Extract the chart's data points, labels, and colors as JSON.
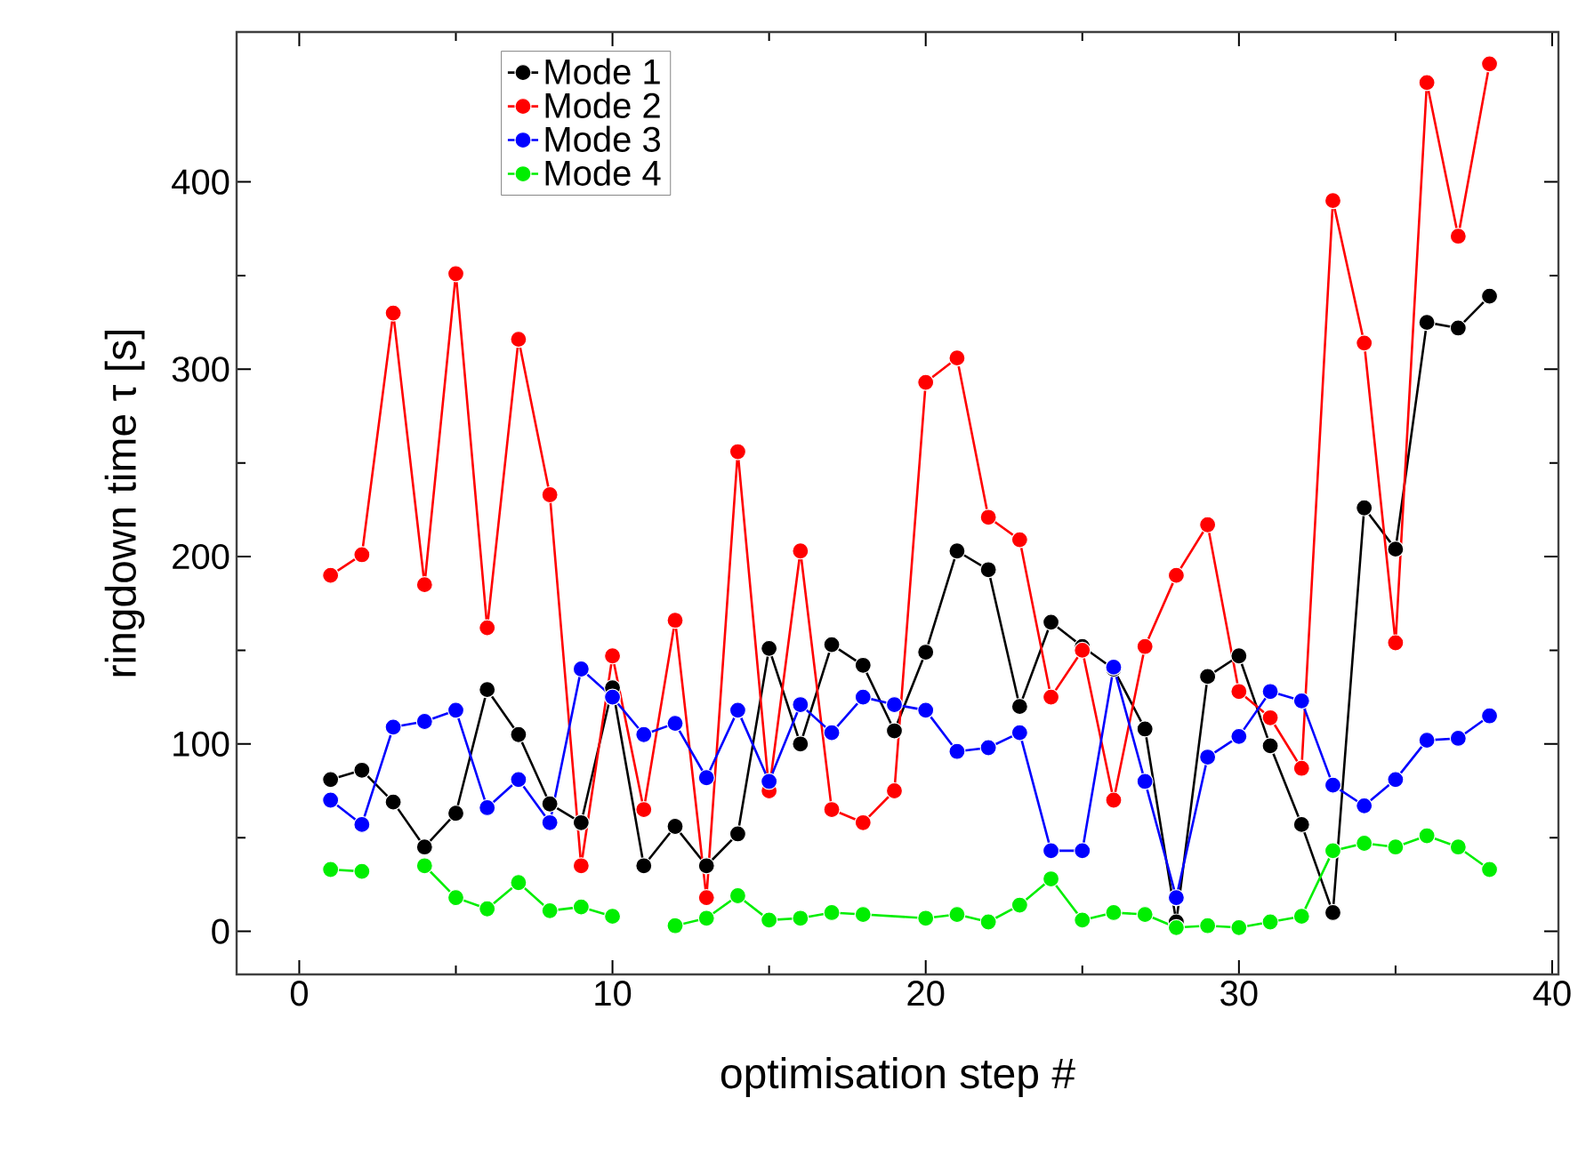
{
  "chart_data": {
    "type": "line",
    "xlabel": "optimisation step #",
    "ylabel": "ringdown time τ [s]",
    "x": [
      1,
      2,
      3,
      4,
      5,
      6,
      7,
      8,
      9,
      10,
      11,
      12,
      13,
      14,
      15,
      16,
      17,
      18,
      19,
      20,
      21,
      22,
      23,
      24,
      25,
      26,
      27,
      28,
      29,
      30,
      31,
      32,
      33,
      34,
      35,
      36,
      37,
      38
    ],
    "series": [
      {
        "name": "Mode 1",
        "color": "#000000",
        "values": [
          81,
          86,
          69,
          45,
          63,
          129,
          105,
          68,
          58,
          130,
          35,
          56,
          35,
          52,
          151,
          100,
          153,
          142,
          107,
          149,
          203,
          193,
          120,
          165,
          152,
          140,
          108,
          5,
          136,
          147,
          99,
          57,
          10,
          226,
          204,
          325,
          322,
          339
        ]
      },
      {
        "name": "Mode 2",
        "color": "#ff0000",
        "values": [
          190,
          201,
          330,
          185,
          351,
          162,
          316,
          233,
          35,
          147,
          65,
          166,
          18,
          256,
          75,
          203,
          65,
          58,
          75,
          293,
          306,
          221,
          209,
          125,
          150,
          70,
          152,
          190,
          217,
          128,
          114,
          87,
          390,
          314,
          154,
          453,
          371,
          463
        ]
      },
      {
        "name": "Mode 3",
        "color": "#0000ff",
        "values": [
          70,
          57,
          109,
          112,
          118,
          66,
          81,
          58,
          140,
          125,
          105,
          111,
          82,
          118,
          80,
          121,
          106,
          125,
          121,
          118,
          96,
          98,
          106,
          43,
          43,
          141,
          80,
          18,
          93,
          104,
          128,
          123,
          78,
          67,
          81,
          102,
          103,
          115
        ]
      },
      {
        "name": "Mode 4",
        "color": "#00ee00",
        "x": [
          1,
          2,
          3,
          4,
          5,
          6,
          7,
          8,
          9,
          10,
          11,
          12,
          13,
          14,
          15,
          16,
          17,
          18,
          20,
          21,
          22,
          23,
          24,
          25,
          26,
          27,
          28,
          29,
          30,
          31,
          32,
          33,
          34,
          35,
          36,
          37,
          38
        ],
        "values": [
          33,
          32,
          null,
          35,
          18,
          12,
          26,
          11,
          13,
          8,
          null,
          3,
          7,
          19,
          6,
          7,
          10,
          9,
          7,
          9,
          5,
          14,
          28,
          6,
          10,
          9,
          2,
          3,
          2,
          5,
          8,
          43,
          47,
          45,
          51,
          45,
          33
        ]
      }
    ],
    "xlim": [
      -2,
      40.2
    ],
    "ylim": [
      -23,
      480
    ],
    "xticks": [
      0,
      10,
      20,
      30,
      40
    ],
    "yticks": [
      0,
      100,
      200,
      300,
      400
    ],
    "legend": "top left",
    "marker": "circle",
    "line_style": "solid"
  }
}
